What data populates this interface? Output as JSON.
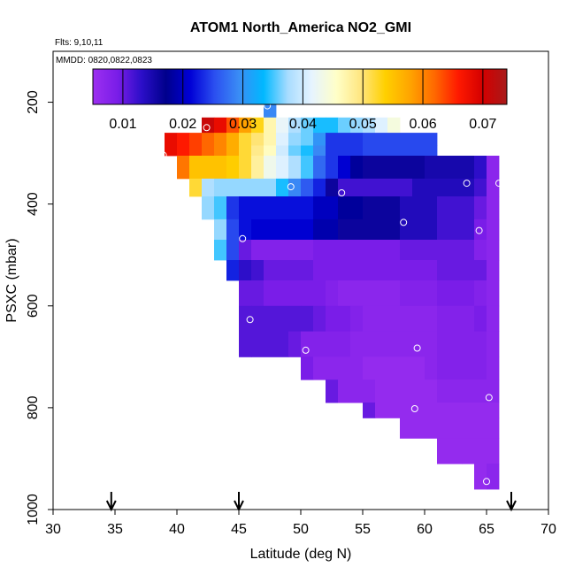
{
  "chart_data": {
    "type": "heatmap",
    "title": "ATOM1 North_America NO2_GMI",
    "subtitle": "Flts: 9,10,11",
    "annotation": "MMDD: 0820,0822,0823",
    "xlabel": "Latitude (deg N)",
    "ylabel": "PSXC (mbar)",
    "xlim": [
      30,
      70
    ],
    "ylim": [
      1000,
      100
    ],
    "x_ticks": [
      "30",
      "35",
      "40",
      "45",
      "50",
      "55",
      "60",
      "65",
      "70"
    ],
    "y_ticks": [
      "200",
      "400",
      "600",
      "800",
      "1000"
    ],
    "colorbar": {
      "range": [
        0.005,
        0.074
      ],
      "ticks": [
        "0.01",
        "0.02",
        "0.03",
        "0.04",
        "0.05",
        "0.06",
        "0.07"
      ],
      "tick_values": [
        0.01,
        0.02,
        0.03,
        0.04,
        0.05,
        0.06,
        0.07
      ],
      "colors": [
        "#9c2ff0",
        "#7a1de8",
        "#2b0ec8",
        "#00008c",
        "#0000d6",
        "#2b4ff0",
        "#3a8df5",
        "#00b8ff",
        "#a8dcff",
        "#e6f4ff",
        "#ffffc8",
        "#ffe680",
        "#ffd000",
        "#ffa500",
        "#ff6a00",
        "#ff1a00",
        "#d40000",
        "#a81a1a"
      ]
    },
    "arrows_latitude": [
      34.7,
      45.0,
      67.0
    ],
    "circles": [
      [
        47.3,
        207
      ],
      [
        51.7,
        213
      ],
      [
        42.4,
        250
      ],
      [
        38.9,
        304
      ],
      [
        49.2,
        366
      ],
      [
        53.3,
        378
      ],
      [
        63.4,
        359
      ],
      [
        66.0,
        359
      ],
      [
        58.3,
        436
      ],
      [
        64.4,
        452
      ],
      [
        45.3,
        468
      ],
      [
        45.9,
        627
      ],
      [
        50.4,
        687
      ],
      [
        59.4,
        683
      ],
      [
        65.2,
        780
      ],
      [
        59.2,
        802
      ],
      [
        65.0,
        945
      ]
    ],
    "rows": [
      {
        "p": [
          160,
          200
        ],
        "segments": [
          [
            47.0,
            48.0,
            0.029
          ]
        ]
      },
      {
        "p": [
          200,
          230
        ],
        "segments": [
          [
            47.0,
            48.0,
            0.029
          ]
        ]
      },
      {
        "p": [
          230,
          260
        ],
        "segments": [
          [
            42.0,
            43.0,
            0.071
          ],
          [
            43.0,
            44.0,
            0.068
          ],
          [
            44.0,
            45.0,
            0.063
          ],
          [
            45.0,
            46.0,
            0.058
          ],
          [
            46.0,
            47.0,
            0.053
          ],
          [
            47.0,
            48.0,
            0.047
          ],
          [
            48.0,
            49.0,
            0.042
          ],
          [
            49.0,
            50.0,
            0.038
          ],
          [
            50.0,
            51.0,
            0.036
          ],
          [
            51.0,
            52.0,
            0.034
          ],
          [
            52.0,
            53.0,
            0.034
          ],
          [
            53.0,
            54.0,
            0.036
          ],
          [
            54.0,
            55.0,
            0.037
          ],
          [
            55.0,
            56.0,
            0.038
          ],
          [
            56.0,
            57.0,
            0.041
          ],
          [
            57.0,
            58.0,
            0.044
          ]
        ]
      },
      {
        "p": [
          260,
          285
        ],
        "segments": [
          [
            39.0,
            40.0,
            0.068
          ],
          [
            40.0,
            41.0,
            0.066
          ],
          [
            41.0,
            42.0,
            0.064
          ],
          [
            42.0,
            43.0,
            0.062
          ],
          [
            43.0,
            44.0,
            0.06
          ],
          [
            44.0,
            45.0,
            0.057
          ],
          [
            45.0,
            46.0,
            0.052
          ],
          [
            46.0,
            47.0,
            0.05
          ],
          [
            47.0,
            48.0,
            0.047
          ],
          [
            48.0,
            49.0,
            0.041
          ],
          [
            49.0,
            50.0,
            0.037
          ],
          [
            50.0,
            51.0,
            0.036
          ],
          [
            51.0,
            52.0,
            0.03
          ],
          [
            52.0,
            55.0,
            0.024
          ],
          [
            55.0,
            61.0,
            0.025
          ]
        ]
      },
      {
        "p": [
          285,
          305
        ],
        "segments": [
          [
            39.0,
            40.0,
            0.068
          ],
          [
            40.0,
            41.0,
            0.066
          ],
          [
            41.0,
            42.0,
            0.064
          ],
          [
            42.0,
            43.0,
            0.062
          ],
          [
            43.0,
            44.0,
            0.06
          ],
          [
            44.0,
            45.0,
            0.057
          ],
          [
            45.0,
            46.0,
            0.052
          ],
          [
            46.0,
            47.0,
            0.049
          ],
          [
            47.0,
            48.0,
            0.046
          ],
          [
            48.0,
            49.0,
            0.04
          ],
          [
            49.0,
            50.0,
            0.036
          ],
          [
            50.0,
            51.0,
            0.034
          ],
          [
            51.0,
            52.0,
            0.029
          ],
          [
            52.0,
            55.0,
            0.024
          ],
          [
            55.0,
            61.0,
            0.025
          ]
        ]
      },
      {
        "p": [
          305,
          350
        ],
        "segments": [
          [
            40.0,
            41.0,
            0.061
          ],
          [
            41.0,
            42.0,
            0.055
          ],
          [
            42.0,
            43.0,
            0.055
          ],
          [
            43.0,
            44.0,
            0.055
          ],
          [
            44.0,
            45.0,
            0.054
          ],
          [
            45.0,
            46.0,
            0.052
          ],
          [
            46.0,
            47.0,
            0.048
          ],
          [
            47.0,
            48.0,
            0.043
          ],
          [
            48.0,
            49.0,
            0.041
          ],
          [
            49.0,
            50.0,
            0.038
          ],
          [
            50.0,
            51.0,
            0.035
          ],
          [
            51.0,
            52.0,
            0.027
          ],
          [
            52.0,
            53.0,
            0.024
          ],
          [
            53.0,
            54.0,
            0.021
          ],
          [
            54.0,
            55.0,
            0.018
          ],
          [
            55.0,
            60.0,
            0.016
          ],
          [
            60.0,
            64.0,
            0.015
          ],
          [
            64.0,
            65.0,
            0.013
          ],
          [
            65.0,
            66.0,
            0.007
          ]
        ]
      },
      {
        "p": [
          350,
          385
        ],
        "segments": [
          [
            41.0,
            42.0,
            0.052
          ],
          [
            42.0,
            43.0,
            0.038
          ],
          [
            43.0,
            48.0,
            0.037
          ],
          [
            48.0,
            49.0,
            0.034
          ],
          [
            49.0,
            50.0,
            0.029
          ],
          [
            50.0,
            51.0,
            0.026
          ],
          [
            51.0,
            52.0,
            0.023
          ],
          [
            52.0,
            53.0,
            0.016
          ],
          [
            53.0,
            59.0,
            0.012
          ],
          [
            59.0,
            64.0,
            0.014
          ],
          [
            64.0,
            65.0,
            0.012
          ],
          [
            65.0,
            66.0,
            0.007
          ]
        ]
      },
      {
        "p": [
          385,
          430
        ],
        "segments": [
          [
            42.0,
            43.0,
            0.037
          ],
          [
            43.0,
            44.0,
            0.035
          ],
          [
            44.0,
            45.0,
            0.024
          ],
          [
            45.0,
            46.0,
            0.022
          ],
          [
            46.0,
            51.0,
            0.022
          ],
          [
            51.0,
            53.0,
            0.02
          ],
          [
            53.0,
            55.0,
            0.018
          ],
          [
            55.0,
            58.0,
            0.016
          ],
          [
            58.0,
            61.0,
            0.014
          ],
          [
            61.0,
            64.0,
            0.012
          ],
          [
            64.0,
            65.0,
            0.01
          ],
          [
            65.0,
            66.0,
            0.007
          ]
        ]
      },
      {
        "p": [
          430,
          470
        ],
        "segments": [
          [
            43.0,
            44.0,
            0.037
          ],
          [
            44.0,
            45.0,
            0.025
          ],
          [
            45.0,
            46.0,
            0.022
          ],
          [
            46.0,
            51.0,
            0.021
          ],
          [
            51.0,
            53.0,
            0.019
          ],
          [
            53.0,
            58.0,
            0.016
          ],
          [
            58.0,
            61.0,
            0.014
          ],
          [
            61.0,
            64.0,
            0.012
          ],
          [
            64.0,
            65.0,
            0.009
          ],
          [
            65.0,
            66.0,
            0.007
          ]
        ]
      },
      {
        "p": [
          470,
          510
        ],
        "segments": [
          [
            43.0,
            44.0,
            0.035
          ],
          [
            44.0,
            45.0,
            0.025
          ],
          [
            45.0,
            46.0,
            0.01
          ],
          [
            46.0,
            51.0,
            0.008
          ],
          [
            51.0,
            58.0,
            0.009
          ],
          [
            58.0,
            61.0,
            0.01
          ],
          [
            61.0,
            64.0,
            0.01
          ],
          [
            64.0,
            65.0,
            0.008
          ],
          [
            65.0,
            66.0,
            0.007
          ]
        ]
      },
      {
        "p": [
          510,
          550
        ],
        "segments": [
          [
            44.0,
            45.0,
            0.023
          ],
          [
            45.0,
            46.0,
            0.013
          ],
          [
            46.0,
            47.0,
            0.012
          ],
          [
            47.0,
            51.0,
            0.01
          ],
          [
            51.0,
            58.0,
            0.009
          ],
          [
            58.0,
            61.0,
            0.009
          ],
          [
            61.0,
            64.0,
            0.01
          ],
          [
            64.0,
            65.0,
            0.01
          ],
          [
            65.0,
            66.0,
            0.007
          ]
        ]
      },
      {
        "p": [
          550,
          600
        ],
        "segments": [
          [
            45.0,
            46.0,
            0.01
          ],
          [
            46.0,
            47.0,
            0.01
          ],
          [
            47.0,
            50.0,
            0.009
          ],
          [
            50.0,
            52.0,
            0.009
          ],
          [
            52.0,
            53.0,
            0.008
          ],
          [
            53.0,
            58.0,
            0.007
          ],
          [
            58.0,
            61.0,
            0.008
          ],
          [
            61.0,
            64.0,
            0.009
          ],
          [
            64.0,
            65.0,
            0.008
          ],
          [
            65.0,
            66.0,
            0.007
          ]
        ]
      },
      {
        "p": [
          600,
          650
        ],
        "segments": [
          [
            45.0,
            46.0,
            0.011
          ],
          [
            46.0,
            50.0,
            0.011
          ],
          [
            50.0,
            51.0,
            0.011
          ],
          [
            51.0,
            52.0,
            0.01
          ],
          [
            52.0,
            54.0,
            0.009
          ],
          [
            54.0,
            55.0,
            0.008
          ],
          [
            55.0,
            61.0,
            0.007
          ],
          [
            61.0,
            64.0,
            0.008
          ],
          [
            64.0,
            65.0,
            0.009
          ],
          [
            65.0,
            66.0,
            0.007
          ]
        ]
      },
      {
        "p": [
          650,
          700
        ],
        "segments": [
          [
            45.0,
            46.0,
            0.011
          ],
          [
            46.0,
            49.0,
            0.011
          ],
          [
            49.0,
            50.0,
            0.01
          ],
          [
            50.0,
            54.0,
            0.008
          ],
          [
            54.0,
            61.0,
            0.007
          ],
          [
            61.0,
            64.0,
            0.008
          ],
          [
            64.0,
            65.0,
            0.008
          ],
          [
            65.0,
            66.0,
            0.007
          ]
        ]
      },
      {
        "p": [
          700,
          745
        ],
        "segments": [
          [
            50.0,
            51.0,
            0.009
          ],
          [
            51.0,
            52.0,
            0.007
          ],
          [
            52.0,
            55.0,
            0.007
          ],
          [
            55.0,
            60.0,
            0.006
          ],
          [
            60.0,
            61.0,
            0.007
          ],
          [
            61.0,
            64.0,
            0.008
          ],
          [
            64.0,
            65.0,
            0.008
          ],
          [
            65.0,
            66.0,
            0.007
          ]
        ]
      },
      {
        "p": [
          745,
          790
        ],
        "segments": [
          [
            52.0,
            53.0,
            0.01
          ],
          [
            53.0,
            56.0,
            0.007
          ],
          [
            56.0,
            61.0,
            0.006
          ],
          [
            61.0,
            64.0,
            0.007
          ],
          [
            64.0,
            66.0,
            0.007
          ]
        ]
      },
      {
        "p": [
          790,
          820
        ],
        "segments": [
          [
            55.0,
            56.0,
            0.01
          ],
          [
            56.0,
            61.0,
            0.006
          ],
          [
            61.0,
            64.0,
            0.006
          ],
          [
            64.0,
            66.0,
            0.006
          ]
        ]
      },
      {
        "p": [
          820,
          860
        ],
        "segments": [
          [
            58.0,
            61.0,
            0.006
          ],
          [
            61.0,
            64.0,
            0.006
          ],
          [
            64.0,
            66.0,
            0.006
          ]
        ]
      },
      {
        "p": [
          860,
          910
        ],
        "segments": [
          [
            61.0,
            63.0,
            0.006
          ],
          [
            63.0,
            66.0,
            0.006
          ]
        ]
      },
      {
        "p": [
          910,
          960
        ],
        "segments": [
          [
            64.0,
            65.0,
            0.006
          ],
          [
            65.0,
            66.0,
            0.007
          ]
        ]
      }
    ]
  }
}
